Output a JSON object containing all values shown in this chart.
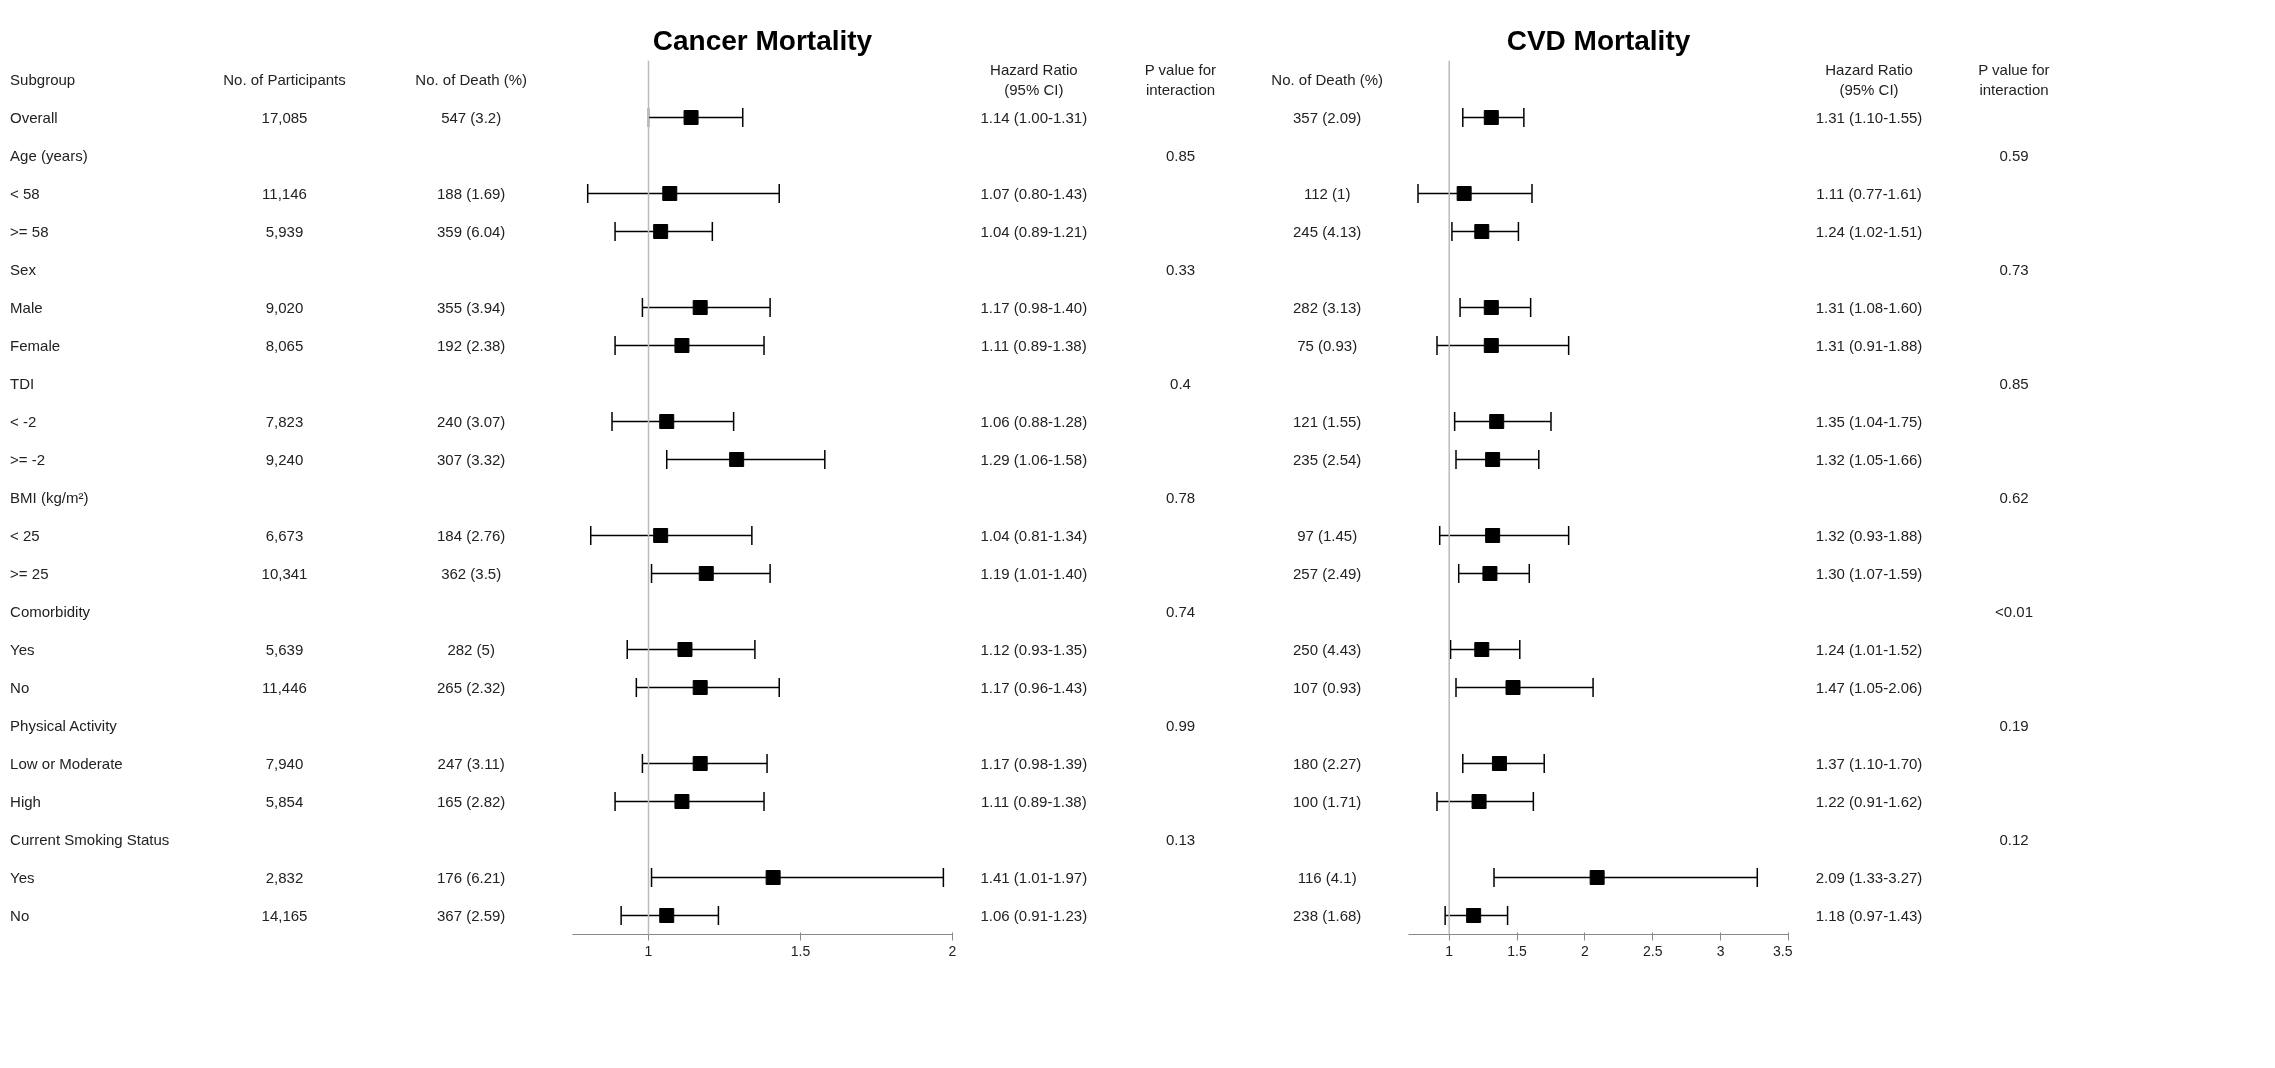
{
  "chart_data": [
    {
      "type": "other",
      "ylabel": "Subgroup",
      "categories": [
        "No. of Participants",
        "No. of Death (%)"
      ],
      "cell_labels": [
        [
          "17,085",
          "547 (3.2)"
        ],
        [
          null,
          null
        ],
        [
          "11,146",
          "188 (1.69)"
        ],
        [
          "5,939",
          "359 (6.04)"
        ],
        [
          null,
          null
        ],
        [
          "9,020",
          "355 (3.94)"
        ],
        [
          "8,065",
          "192 (2.38)"
        ],
        [
          null,
          null
        ],
        [
          "7,823",
          "240 (3.07)"
        ],
        [
          "9,240",
          "307 (3.32)"
        ],
        [
          null,
          null
        ],
        [
          "6,673",
          "184 (2.76)"
        ],
        [
          "10,341",
          "362 (3.5)"
        ],
        [
          null,
          null
        ],
        [
          "5,639",
          "282 (5)"
        ],
        [
          "11,446",
          "265 (2.32)"
        ],
        [
          null,
          null
        ],
        [
          "7,940",
          "247 (3.11)"
        ],
        [
          "5,854",
          "165 (2.82)"
        ],
        [
          null,
          null
        ],
        [
          "2,832",
          "176 (6.21)"
        ],
        [
          "14,165",
          "367 (2.59)"
        ]
      ]
    },
    {
      "type": "scatter",
      "title": "Cancer Mortality",
      "orientation": "horizontal",
      "marker": "square",
      "tick_labels": "x",
      "grid": false,
      "categories": [
        null,
        "Overall",
        "Age (years)",
        "< 58",
        ">= 58",
        "Sex",
        "Male",
        "Female",
        "TDI",
        "< -2",
        ">= -2",
        "BMI (kg/m²)",
        "< 25",
        ">= 25",
        "Comorbidity",
        "Yes",
        "No",
        "Physical Activity",
        "Low or Moderate",
        "High",
        "Current Smoking Status",
        "Yes",
        "No"
      ],
      "values": [
        null,
        1.14,
        null,
        1.07,
        1.04,
        null,
        1.17,
        1.11,
        null,
        1.06,
        1.29,
        null,
        1.04,
        1.19,
        null,
        1.12,
        1.17,
        null,
        1.17,
        1.11,
        null,
        1.41,
        1.06
      ],
      "errors": [
        null,
        [
          1.0,
          1.31
        ],
        null,
        [
          0.8,
          1.43
        ],
        [
          0.89,
          1.21
        ],
        null,
        [
          0.98,
          1.4
        ],
        [
          0.89,
          1.38
        ],
        null,
        [
          0.88,
          1.28
        ],
        [
          1.06,
          1.58
        ],
        null,
        [
          0.81,
          1.34
        ],
        [
          1.01,
          1.4
        ],
        null,
        [
          0.93,
          1.35
        ],
        [
          0.96,
          1.43
        ],
        null,
        [
          0.98,
          1.39
        ],
        [
          0.89,
          1.38
        ],
        null,
        [
          1.01,
          1.97
        ],
        [
          0.91,
          1.23
        ]
      ],
      "color": "#000000",
      "xlim": [
        0.75,
        2
      ],
      "xticks": [
        1,
        1.5,
        2
      ],
      "ref_lines": [
        {
          "axis": "x",
          "value": 1,
          "color": "#bbbbbb"
        }
      ]
    },
    {
      "type": "other",
      "categories": [
        "Hazard Ratio\n(95% CI)",
        "P value for\ninteraction",
        "No. of Death (%)"
      ],
      "cell_labels": [
        [
          "1.14 (1.00-1.31)",
          null,
          "357 (2.09)"
        ],
        [
          null,
          "0.85",
          null
        ],
        [
          "1.07 (0.80-1.43)",
          null,
          "112 (1)"
        ],
        [
          "1.04 (0.89-1.21)",
          null,
          "245 (4.13)"
        ],
        [
          null,
          "0.33",
          null
        ],
        [
          "1.17 (0.98-1.40)",
          null,
          "282 (3.13)"
        ],
        [
          "1.11 (0.89-1.38)",
          null,
          "75 (0.93)"
        ],
        [
          null,
          "0.4",
          null
        ],
        [
          "1.06 (0.88-1.28)",
          null,
          "121 (1.55)"
        ],
        [
          "1.29 (1.06-1.58)",
          null,
          "235 (2.54)"
        ],
        [
          null,
          "0.78",
          null
        ],
        [
          "1.04 (0.81-1.34)",
          null,
          "97 (1.45)"
        ],
        [
          "1.19 (1.01-1.40)",
          null,
          "257 (2.49)"
        ],
        [
          null,
          "0.74",
          null
        ],
        [
          "1.12 (0.93-1.35)",
          null,
          "250 (4.43)"
        ],
        [
          "1.17 (0.96-1.43)",
          null,
          "107 (0.93)"
        ],
        [
          null,
          "0.99",
          null
        ],
        [
          "1.17 (0.98-1.39)",
          null,
          "180 (2.27)"
        ],
        [
          "1.11 (0.89-1.38)",
          null,
          "100 (1.71)"
        ],
        [
          null,
          "0.13",
          null
        ],
        [
          "1.41 (1.01-1.97)",
          null,
          "116 (4.1)"
        ],
        [
          "1.06 (0.91-1.23)",
          null,
          "238 (1.68)"
        ]
      ]
    },
    {
      "type": "scatter",
      "title": "CVD Mortality",
      "orientation": "horizontal",
      "marker": "square",
      "tick_labels": "x",
      "grid": false,
      "categories": [
        null,
        null,
        null,
        null,
        null,
        null,
        null,
        null,
        null,
        null,
        null,
        null,
        null,
        null,
        null,
        null,
        null,
        null,
        null,
        null,
        null,
        null,
        null
      ],
      "values": [
        null,
        1.31,
        null,
        1.11,
        1.24,
        null,
        1.31,
        1.31,
        null,
        1.35,
        1.32,
        null,
        1.32,
        1.3,
        null,
        1.24,
        1.47,
        null,
        1.37,
        1.22,
        null,
        2.09,
        1.18
      ],
      "errors": [
        null,
        [
          1.1,
          1.55
        ],
        null,
        [
          0.77,
          1.61
        ],
        [
          1.02,
          1.51
        ],
        null,
        [
          1.08,
          1.6
        ],
        [
          0.91,
          1.88
        ],
        null,
        [
          1.04,
          1.75
        ],
        [
          1.05,
          1.66
        ],
        null,
        [
          0.93,
          1.88
        ],
        [
          1.07,
          1.59
        ],
        null,
        [
          1.01,
          1.52
        ],
        [
          1.05,
          2.06
        ],
        null,
        [
          1.1,
          1.7
        ],
        [
          0.91,
          1.62
        ],
        null,
        [
          1.33,
          3.27
        ],
        [
          0.97,
          1.43
        ]
      ],
      "color": "#000000",
      "xlim": [
        0.7,
        3.5
      ],
      "xticks": [
        1,
        1.5,
        2,
        2.5,
        3,
        3.5
      ],
      "ref_lines": [
        {
          "axis": "x",
          "value": 1,
          "color": "#bbbbbb"
        }
      ]
    },
    {
      "type": "other",
      "categories": [
        "Hazard Ratio\n(95% CI)",
        "P value for\ninteraction"
      ],
      "cell_labels": [
        [
          "1.31 (1.10-1.55)",
          null
        ],
        [
          null,
          "0.59"
        ],
        [
          "1.11 (0.77-1.61)",
          null
        ],
        [
          "1.24 (1.02-1.51)",
          null
        ],
        [
          null,
          "0.73"
        ],
        [
          "1.31 (1.08-1.60)",
          null
        ],
        [
          "1.31 (0.91-1.88)",
          null
        ],
        [
          null,
          "0.85"
        ],
        [
          "1.35 (1.04-1.75)",
          null
        ],
        [
          "1.32 (1.05-1.66)",
          null
        ],
        [
          null,
          "0.62"
        ],
        [
          "1.32 (0.93-1.88)",
          null
        ],
        [
          "1.30 (1.07-1.59)",
          null
        ],
        [
          null,
          "<0.01"
        ],
        [
          "1.24 (1.01-1.52)",
          null
        ],
        [
          "1.47 (1.05-2.06)",
          null
        ],
        [
          null,
          "0.19"
        ],
        [
          "1.37 (1.10-1.70)",
          null
        ],
        [
          "1.22 (0.91-1.62)",
          null
        ],
        [
          null,
          "0.12"
        ],
        [
          "2.09 (1.33-3.27)",
          null
        ],
        [
          "1.18 (0.97-1.43)",
          null
        ]
      ]
    }
  ]
}
